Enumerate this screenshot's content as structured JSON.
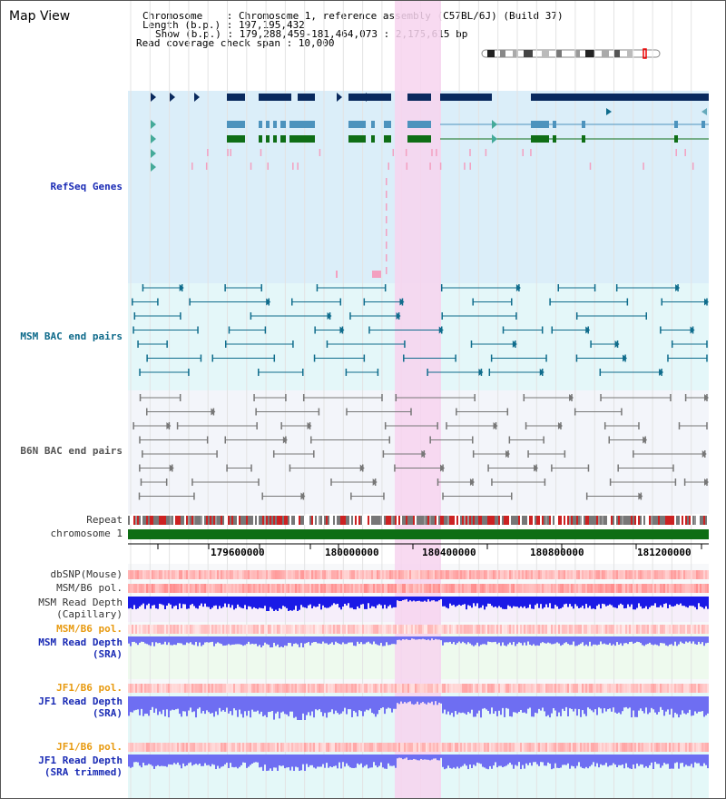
{
  "view_title": "Map View",
  "header": {
    "chromosome_line": "Chromosome    : Chromosome 1, reference assembly (C57BL/6J) (Build 37)",
    "length_line": "Length (b.p.) : 197,195,432",
    "show_line": "Show (b.p.) : 179,288,459-181,464,073 : 2,175,615 bp",
    "span_line": "Read coverage check span : 10,000"
  },
  "tracks": {
    "refseq": "RefSeq Genes",
    "msm_bac": "MSM BAC end pairs",
    "b6n_bac": "B6N BAC end pairs",
    "repeat": "Repeat",
    "chromosome": "chromosome 1",
    "dbsnp": "dbSNP(Mouse)",
    "msm_b6_pol_1": "MSM/B6 pol.",
    "msm_depth_cap_1": "MSM Read Depth",
    "msm_depth_cap_2": "(Capillary)",
    "msm_b6_pol_2": "MSM/B6 pol.",
    "msm_depth_sra_1": "MSM Read Depth",
    "msm_depth_sra_2": "(SRA)",
    "jf1_pol_1": "JF1/B6 pol.",
    "jf1_depth_1": "JF1 Read Depth",
    "jf1_depth_2": "(SRA)",
    "jf1_pol_2": "JF1/B6 pol.",
    "jf1_trim_1": "JF1 Read Depth",
    "jf1_trim_2": "(SRA trimmed)"
  },
  "axis": {
    "ticks": [
      "179600000",
      "180000000",
      "180400000",
      "180800000",
      "181200000"
    ]
  },
  "colors": {
    "refseq_bg": "#dbeef9",
    "bac_bg": "#e4f7f9",
    "b6n_bg": "#f3f5fa",
    "highlight": "#f7d4ef",
    "gene_dark": "#0a2a5e",
    "gene_mid": "#4d93bd",
    "gene_green": "#0f6e16",
    "msm_blue": "#0f6c8c",
    "depth_blue": "#1a1ae6",
    "depth_light": "#6e6ef2",
    "label_blue": "#1a2bb5",
    "label_orange": "#e89a10",
    "label_teal": "#0e6a8a"
  }
}
